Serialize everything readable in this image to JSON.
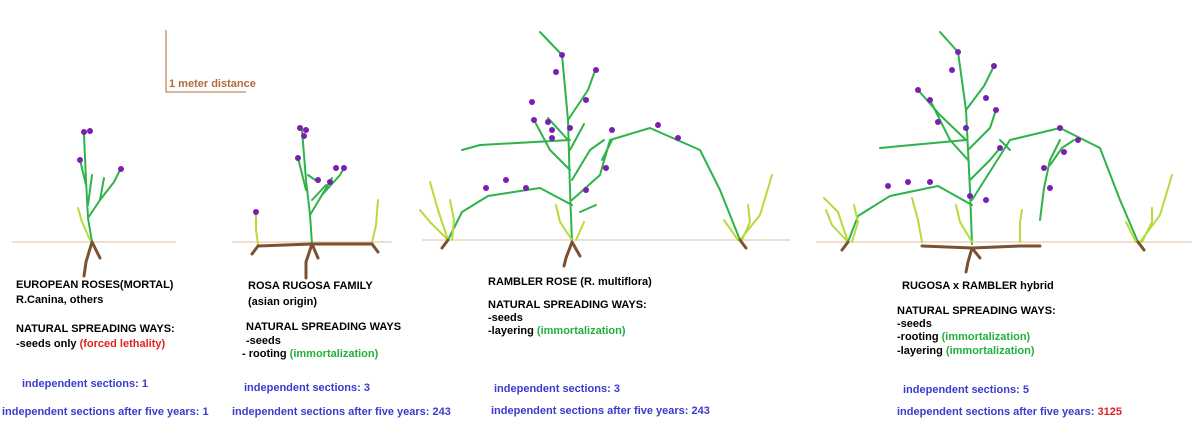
{
  "scale_label": "1 meter distance",
  "panels": [
    {
      "title": "EUROPEAN ROSES(MORTAL)",
      "subtitle": "R.Canina, others",
      "spreading_heading": "NATURAL SPREADING WAYS:",
      "ways": [
        {
          "text": "-seeds only",
          "note": "(forced lethality)"
        }
      ],
      "sections_label": "independent sections:",
      "sections_value": "1",
      "five_year_label": "independent sections after five years:",
      "five_year_value": "1"
    },
    {
      "title": "ROSA RUGOSA FAMILY",
      "subtitle": "(asian origin)",
      "spreading_heading": "NATURAL SPREADING WAYS",
      "ways": [
        {
          "text": "-seeds",
          "note": ""
        },
        {
          "text": "- rooting",
          "note": "(immortalization)"
        }
      ],
      "sections_label": "independent sections:",
      "sections_value": "3",
      "five_year_label": "independent sections after five years:",
      "five_year_value": "243"
    },
    {
      "title": "RAMBLER ROSE (R. multiflora)",
      "subtitle": "",
      "spreading_heading": "NATURAL SPREADING WAYS:",
      "ways": [
        {
          "text": "-seeds",
          "note": ""
        },
        {
          "text": "-layering",
          "note": "(immortalization)"
        }
      ],
      "sections_label": "independent sections:",
      "sections_value": "3",
      "five_year_label": "independent sections after five years:",
      "five_year_value": "243"
    },
    {
      "title": "RUGOSA x RAMBLER hybrid",
      "subtitle": "",
      "spreading_heading": "NATURAL SPREADING WAYS:",
      "ways": [
        {
          "text": "-seeds",
          "note": ""
        },
        {
          "text": "-rooting",
          "note": "(immortalization)"
        },
        {
          "text": "-layering",
          "note": "(immortalization)"
        }
      ],
      "sections_label": "independent sections:",
      "sections_value": "5",
      "five_year_label": "independent sections after five years:",
      "five_year_value": "3125"
    }
  ],
  "colors": {
    "stem": "#2db34a",
    "sucker": "#b5dc3a",
    "flower": "#7a1fb0",
    "root": "#7a5232",
    "ground": "#e8c9b0",
    "scale_line": "#b36b3c",
    "label_blue": "#3a3ad0",
    "lethal_red": "#e02020",
    "immortal_green": "#22b03c"
  }
}
